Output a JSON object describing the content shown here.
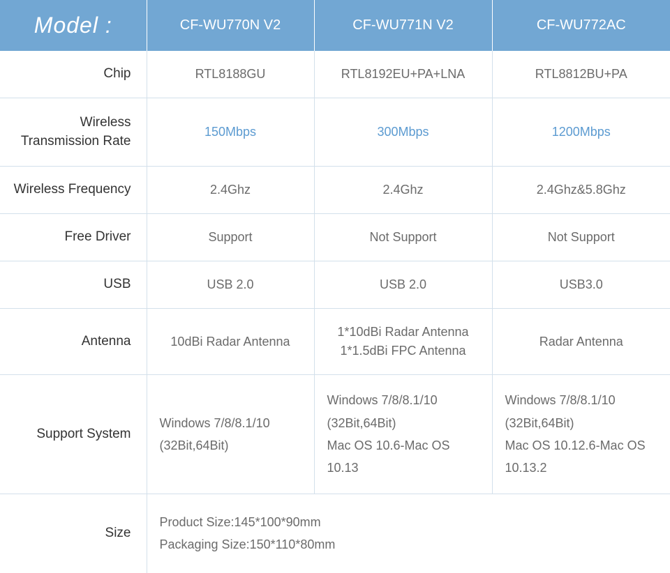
{
  "colors": {
    "header_bg": "#72a7d3",
    "header_text": "#ffffff",
    "border": "#d3e0eb",
    "label_text": "#333333",
    "data_text": "#6b6b6b",
    "highlight": "#5c9bd1",
    "background": "#ffffff"
  },
  "header": {
    "model_label": "Model :",
    "col1": "CF-WU770N V2",
    "col2": "CF-WU771N V2",
    "col3": "CF-WU772AC"
  },
  "rows": {
    "chip": {
      "label": "Chip",
      "col1": "RTL8188GU",
      "col2": "RTL8192EU+PA+LNA",
      "col3": "RTL8812BU+PA"
    },
    "rate": {
      "label": "Wireless\nTransmission Rate",
      "col1": "150Mbps",
      "col2": "300Mbps",
      "col3": "1200Mbps"
    },
    "freq": {
      "label": "Wireless Frequency",
      "col1": "2.4Ghz",
      "col2": "2.4Ghz",
      "col3": "2.4Ghz&5.8Ghz"
    },
    "driver": {
      "label": "Free Driver",
      "col1": "Support",
      "col2": "Not Support",
      "col3": "Not Support"
    },
    "usb": {
      "label": "USB",
      "col1": "USB 2.0",
      "col2": "USB 2.0",
      "col3": "USB3.0"
    },
    "antenna": {
      "label": "Antenna",
      "col1": "10dBi Radar Antenna",
      "col2": "1*10dBi Radar Antenna\n1*1.5dBi FPC Antenna",
      "col3": "Radar Antenna"
    },
    "support": {
      "label": "Support System",
      "col1": "Windows 7/8/8.1/10\n(32Bit,64Bit)",
      "col2": "Windows 7/8/8.1/10\n(32Bit,64Bit)\nMac OS 10.6-Mac OS 10.13",
      "col3": "Windows 7/8/8.1/10\n(32Bit,64Bit)\nMac OS 10.12.6-Mac OS 10.13.2"
    },
    "size": {
      "label": "Size",
      "merged": "Product Size:145*100*90mm\nPackaging Size:150*110*80mm"
    }
  }
}
